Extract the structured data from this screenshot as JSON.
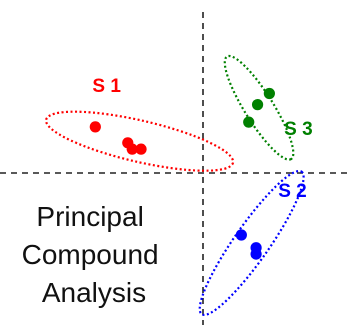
{
  "chart_data": {
    "type": "scatter",
    "title": "",
    "xlabel": "",
    "ylabel": "",
    "axes": {
      "style": "dashed",
      "grid": false,
      "tick_labels": false
    },
    "xlim": [
      -10,
      10
    ],
    "ylim": [
      -10,
      10
    ],
    "series": [
      {
        "name": "S 1",
        "color": "#ff0000",
        "points": [
          [
            -7.3,
            2.9
          ],
          [
            -5.1,
            1.9
          ],
          [
            -4.8,
            1.5
          ],
          [
            -4.2,
            1.5
          ]
        ],
        "ellipse": {
          "center": [
            -4.3,
            2.0
          ],
          "angle_deg": -13,
          "semi_major": 6.5,
          "semi_minor": 1.3
        },
        "label_anchor": [
          -7.5,
          5.1
        ]
      },
      {
        "name": "S 3",
        "color": "#008000",
        "points": [
          [
            4.5,
            5.0
          ],
          [
            3.7,
            4.3
          ],
          [
            3.1,
            3.2
          ]
        ],
        "ellipse": {
          "center": [
            3.8,
            4.1
          ],
          "angle_deg": -58,
          "semi_major": 4.1,
          "semi_minor": 0.9
        },
        "label_anchor": [
          5.5,
          2.4
        ]
      },
      {
        "name": "S 2",
        "color": "#0000ff",
        "points": [
          [
            2.6,
            -3.9
          ],
          [
            3.6,
            -4.7
          ],
          [
            3.6,
            -5.1
          ]
        ],
        "ellipse": {
          "center": [
            3.3,
            -4.4
          ],
          "angle_deg": 55,
          "semi_major": 5.9,
          "semi_minor": 1.1
        },
        "label_anchor": [
          5.1,
          -1.5
        ]
      }
    ],
    "annotation": [
      "Principal",
      "Compound",
      "Analysis"
    ]
  }
}
